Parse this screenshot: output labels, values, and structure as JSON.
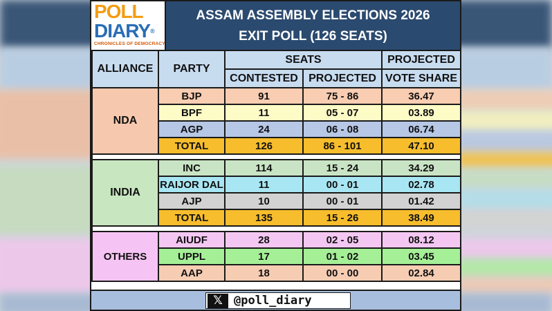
{
  "brand": {
    "logo_line1": "POLL",
    "logo_line2": "DIARY",
    "logo_registered": "®",
    "logo_tagline": "CHRONICLES OF DEMOCRACY"
  },
  "header": {
    "title": "ASSAM ASSEMBLY ELECTIONS 2026",
    "subtitle": "EXIT POLL (126 SEATS)"
  },
  "columns": {
    "alliance": "ALLIANCE",
    "party": "PARTY",
    "seats": "SEATS",
    "contested": "CONTESTED",
    "projected": "PROJECTED",
    "vote_share_line1": "PROJECTED",
    "vote_share_line2": "VOTE SHARE"
  },
  "alliances": [
    {
      "name": "NDA",
      "rows": [
        {
          "party": "BJP",
          "contested": "91",
          "projected": "75 - 86",
          "vote_share": "36.47",
          "color": "#f9cdb2"
        },
        {
          "party": "BPF",
          "contested": "11",
          "projected": "05 - 07",
          "vote_share": "03.89",
          "color": "#fdfbc6"
        },
        {
          "party": "AGP",
          "contested": "24",
          "projected": "06 - 08",
          "vote_share": "06.74",
          "color": "#b7c7e6"
        },
        {
          "party": "TOTAL",
          "contested": "126",
          "projected": "86 - 101",
          "vote_share": "47.10",
          "color": "#f7bd2c"
        }
      ]
    },
    {
      "name": "INDIA",
      "rows": [
        {
          "party": "INC",
          "contested": "114",
          "projected": "15 - 24",
          "vote_share": "34.29",
          "color": "#c9e4c4"
        },
        {
          "party": "RAIJOR DAL",
          "contested": "11",
          "projected": "00 - 01",
          "vote_share": "02.78",
          "color": "#a8e6f3"
        },
        {
          "party": "AJP",
          "contested": "10",
          "projected": "00 - 01",
          "vote_share": "01.42",
          "color": "#d2d2d2"
        },
        {
          "party": "TOTAL",
          "contested": "135",
          "projected": "15 - 26",
          "vote_share": "38.49",
          "color": "#f7bd2c"
        }
      ]
    },
    {
      "name": "OTHERS",
      "rows": [
        {
          "party": "AIUDF",
          "contested": "28",
          "projected": "02 - 05",
          "vote_share": "08.12",
          "color": "#f4c7f2"
        },
        {
          "party": "UPPL",
          "contested": "17",
          "projected": "01 - 02",
          "vote_share": "03.45",
          "color": "#a5ef97"
        },
        {
          "party": "AAP",
          "contested": "18",
          "projected": "00 - 00",
          "vote_share": "02.84",
          "color": "#f6cdb3"
        }
      ]
    }
  ],
  "footer": {
    "icon": "x-logo-icon",
    "handle": "@poll_diary"
  },
  "colors": {
    "header_bg": "#2b4a6f",
    "column_header_bg": "#c8dcf0",
    "footer_bg": "#a8bedf",
    "nda": "#f6c9ae",
    "india": "#c8e6c0",
    "others": "#f6c4f4",
    "total": "#f7bd2c"
  }
}
